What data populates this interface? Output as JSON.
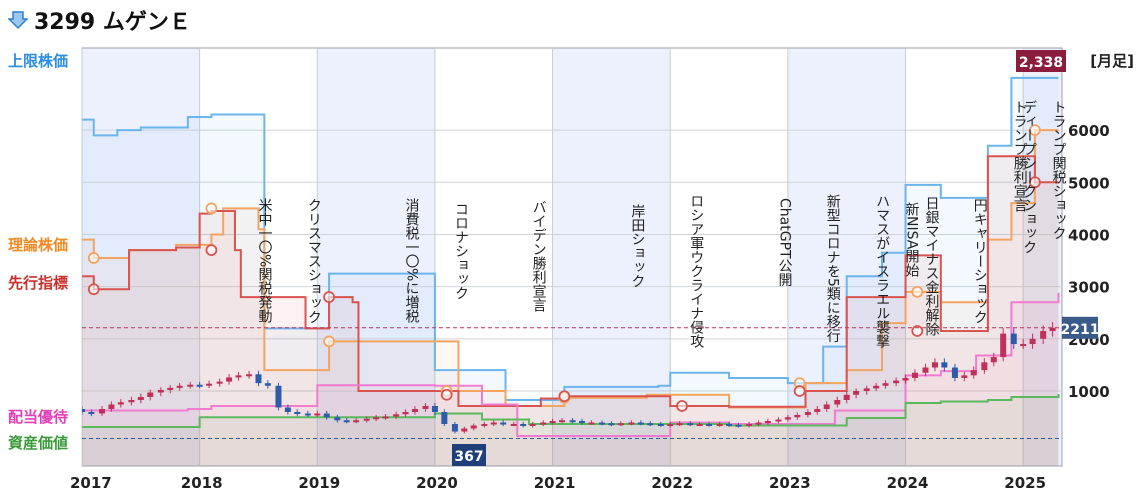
{
  "header": {
    "title": "3299 ムゲンＥ"
  },
  "legend": {
    "upper": "上限株価",
    "theory": "理論株価",
    "leading": "先行指標",
    "dividend": "配当優待",
    "asset": "資産価値",
    "period": "[月足]"
  },
  "colors": {
    "upper": "#6bb4ec",
    "theory": "#f4a460",
    "leading": "#d9534f",
    "dividend": "#f27ad0",
    "asset": "#5cb85c",
    "up_candle": "#c0305a",
    "down_candle": "#2f5ca8",
    "max_badge": "#8b1c3c",
    "min_badge": "#1f3f7a",
    "current_badge": "#3a5a8a"
  },
  "chart_data": {
    "type": "line",
    "x_axis": {
      "ticks": [
        "2017",
        "2018",
        "2019",
        "2020",
        "2021",
        "2022",
        "2023",
        "2024",
        "2025"
      ]
    },
    "y_axis": {
      "ticks": [
        1000,
        2000,
        3000,
        4000,
        5000,
        6000
      ]
    },
    "max_label": "2,338",
    "min_label": "367",
    "current_label": "2211",
    "series": [
      {
        "name": "上限株価",
        "x": [
          2017.0,
          2017.1,
          2017.3,
          2017.5,
          2017.9,
          2018.1,
          2018.5,
          2018.55,
          2018.9,
          2019.0,
          2019.1,
          2019.7,
          2019.8,
          2020.0,
          2020.4,
          2020.6,
          2020.9,
          2021.1,
          2021.7,
          2021.9,
          2022.0,
          2022.5,
          2023.0,
          2023.3,
          2023.5,
          2023.8,
          2024.0,
          2024.3,
          2024.5,
          2024.7,
          2024.9,
          2025.3
        ],
        "y": [
          6200,
          5900,
          6000,
          6050,
          6250,
          6300,
          6300,
          2200,
          2200,
          2200,
          3250,
          3250,
          3250,
          1400,
          1400,
          880,
          880,
          1080,
          1080,
          1100,
          1350,
          1250,
          1150,
          1850,
          3200,
          3650,
          4950,
          4700,
          4700,
          5700,
          7000,
          7000
        ]
      },
      {
        "name": "理論株価",
        "x": [
          2017.0,
          2017.1,
          2017.4,
          2017.8,
          2018.1,
          2018.2,
          2018.5,
          2018.55,
          2019.0,
          2019.1,
          2019.7,
          2019.9,
          2020.2,
          2020.4,
          2020.6,
          2020.9,
          2021.1,
          2021.5,
          2021.8,
          2022.0,
          2022.5,
          2022.9,
          2023.0,
          2023.15,
          2023.5,
          2023.8,
          2024.0,
          2024.3,
          2024.6,
          2024.7,
          2024.9,
          2025.1,
          2025.3
        ],
        "y": [
          3900,
          3550,
          3700,
          3800,
          4000,
          4500,
          4100,
          1400,
          1400,
          1950,
          1950,
          1950,
          1000,
          1000,
          800,
          800,
          910,
          910,
          950,
          950,
          780,
          780,
          780,
          1150,
          1400,
          2300,
          2900,
          2700,
          2700,
          3900,
          4600,
          6000,
          6000
        ]
      },
      {
        "name": "先行指標",
        "x": [
          2017.0,
          2017.1,
          2017.4,
          2017.8,
          2018.0,
          2018.1,
          2018.3,
          2018.35,
          2018.9,
          2019.1,
          2019.3,
          2019.35,
          2019.9,
          2020.2,
          2020.5,
          2020.9,
          2021.1,
          2021.5,
          2022.0,
          2022.5,
          2023.0,
          2023.15,
          2023.5,
          2023.8,
          2024.0,
          2024.3,
          2024.6,
          2024.7,
          2024.9,
          2025.1,
          2025.3
        ],
        "y": [
          3200,
          2950,
          3700,
          3750,
          4400,
          4450,
          3700,
          2800,
          2200,
          2800,
          2700,
          1000,
          1000,
          800,
          800,
          900,
          930,
          930,
          800,
          790,
          790,
          1000,
          2800,
          2800,
          3600,
          2150,
          2150,
          5500,
          5500,
          5000,
          5000
        ]
      },
      {
        "name": "配当優待",
        "x": [
          2017.0,
          2017.9,
          2018.1,
          2019.0,
          2020.0,
          2020.4,
          2020.6,
          2020.7,
          2021.5,
          2021.8,
          2022.0,
          2022.5,
          2023.0,
          2023.4,
          2024.0,
          2024.3,
          2024.6,
          2024.9,
          2025.3
        ],
        "y": [
          740,
          760,
          800,
          1110,
          1100,
          820,
          820,
          400,
          400,
          400,
          580,
          560,
          560,
          740,
          1300,
          1380,
          1680,
          2700,
          2880
        ]
      },
      {
        "name": "資産価値",
        "x": [
          2017.0,
          2017.9,
          2018.0,
          2019.0,
          2020.0,
          2020.4,
          2020.8,
          2021.5,
          2022.0,
          2022.5,
          2023.0,
          2023.5,
          2024.0,
          2024.3,
          2024.5,
          2024.7,
          2024.9,
          2025.3
        ],
        "y": [
          520,
          520,
          650,
          650,
          700,
          620,
          560,
          560,
          560,
          540,
          540,
          640,
          840,
          860,
          860,
          880,
          920,
          960
        ]
      }
    ],
    "candles": [
      {
        "x": 2017.0,
        "o": 760,
        "c": 720
      },
      {
        "x": 2017.08,
        "o": 720,
        "c": 700
      },
      {
        "x": 2017.17,
        "o": 700,
        "c": 760
      },
      {
        "x": 2017.25,
        "o": 760,
        "c": 820
      },
      {
        "x": 2017.33,
        "o": 820,
        "c": 850
      },
      {
        "x": 2017.42,
        "o": 850,
        "c": 880
      },
      {
        "x": 2017.5,
        "o": 880,
        "c": 920
      },
      {
        "x": 2017.58,
        "o": 920,
        "c": 980
      },
      {
        "x": 2017.67,
        "o": 980,
        "c": 1020
      },
      {
        "x": 2017.75,
        "o": 1020,
        "c": 1060
      },
      {
        "x": 2017.83,
        "o": 1060,
        "c": 1100
      },
      {
        "x": 2017.92,
        "o": 1100,
        "c": 1120
      },
      {
        "x": 2018.0,
        "o": 1120,
        "c": 1110
      },
      {
        "x": 2018.08,
        "o": 1110,
        "c": 1140
      },
      {
        "x": 2018.17,
        "o": 1140,
        "c": 1180
      },
      {
        "x": 2018.25,
        "o": 1180,
        "c": 1260
      },
      {
        "x": 2018.33,
        "o": 1260,
        "c": 1300
      },
      {
        "x": 2018.42,
        "o": 1300,
        "c": 1320
      },
      {
        "x": 2018.5,
        "o": 1320,
        "c": 1150
      },
      {
        "x": 2018.58,
        "o": 1150,
        "c": 1100
      },
      {
        "x": 2018.67,
        "o": 1100,
        "c": 780
      },
      {
        "x": 2018.75,
        "o": 780,
        "c": 720
      },
      {
        "x": 2018.83,
        "o": 720,
        "c": 700
      },
      {
        "x": 2018.92,
        "o": 700,
        "c": 690
      },
      {
        "x": 2019.0,
        "o": 690,
        "c": 700
      },
      {
        "x": 2019.08,
        "o": 700,
        "c": 650
      },
      {
        "x": 2019.17,
        "o": 650,
        "c": 610
      },
      {
        "x": 2019.25,
        "o": 610,
        "c": 600
      },
      {
        "x": 2019.33,
        "o": 600,
        "c": 610
      },
      {
        "x": 2019.42,
        "o": 610,
        "c": 630
      },
      {
        "x": 2019.5,
        "o": 630,
        "c": 650
      },
      {
        "x": 2019.58,
        "o": 650,
        "c": 660
      },
      {
        "x": 2019.67,
        "o": 660,
        "c": 690
      },
      {
        "x": 2019.75,
        "o": 690,
        "c": 720
      },
      {
        "x": 2019.83,
        "o": 720,
        "c": 760
      },
      {
        "x": 2019.92,
        "o": 760,
        "c": 800
      },
      {
        "x": 2020.0,
        "o": 800,
        "c": 720
      },
      {
        "x": 2020.08,
        "o": 720,
        "c": 560
      },
      {
        "x": 2020.17,
        "o": 560,
        "c": 460
      },
      {
        "x": 2020.25,
        "o": 460,
        "c": 500
      },
      {
        "x": 2020.33,
        "o": 500,
        "c": 540
      },
      {
        "x": 2020.42,
        "o": 540,
        "c": 560
      },
      {
        "x": 2020.5,
        "o": 560,
        "c": 580
      },
      {
        "x": 2020.58,
        "o": 580,
        "c": 560
      },
      {
        "x": 2020.67,
        "o": 560,
        "c": 560
      },
      {
        "x": 2020.75,
        "o": 560,
        "c": 540
      },
      {
        "x": 2020.83,
        "o": 540,
        "c": 560
      },
      {
        "x": 2020.92,
        "o": 560,
        "c": 580
      },
      {
        "x": 2021.0,
        "o": 580,
        "c": 600
      },
      {
        "x": 2021.08,
        "o": 600,
        "c": 610
      },
      {
        "x": 2021.17,
        "o": 610,
        "c": 600
      },
      {
        "x": 2021.25,
        "o": 600,
        "c": 580
      },
      {
        "x": 2021.33,
        "o": 580,
        "c": 580
      },
      {
        "x": 2021.42,
        "o": 580,
        "c": 570
      },
      {
        "x": 2021.5,
        "o": 570,
        "c": 560
      },
      {
        "x": 2021.58,
        "o": 560,
        "c": 570
      },
      {
        "x": 2021.67,
        "o": 570,
        "c": 580
      },
      {
        "x": 2021.75,
        "o": 580,
        "c": 570
      },
      {
        "x": 2021.83,
        "o": 570,
        "c": 560
      },
      {
        "x": 2021.92,
        "o": 560,
        "c": 550
      },
      {
        "x": 2022.0,
        "o": 550,
        "c": 560
      },
      {
        "x": 2022.08,
        "o": 560,
        "c": 570
      },
      {
        "x": 2022.17,
        "o": 570,
        "c": 560
      },
      {
        "x": 2022.25,
        "o": 560,
        "c": 560
      },
      {
        "x": 2022.33,
        "o": 560,
        "c": 550
      },
      {
        "x": 2022.42,
        "o": 550,
        "c": 560
      },
      {
        "x": 2022.5,
        "o": 560,
        "c": 550
      },
      {
        "x": 2022.58,
        "o": 550,
        "c": 540
      },
      {
        "x": 2022.67,
        "o": 540,
        "c": 560
      },
      {
        "x": 2022.75,
        "o": 560,
        "c": 580
      },
      {
        "x": 2022.83,
        "o": 580,
        "c": 600
      },
      {
        "x": 2022.92,
        "o": 600,
        "c": 620
      },
      {
        "x": 2023.0,
        "o": 620,
        "c": 650
      },
      {
        "x": 2023.08,
        "o": 650,
        "c": 680
      },
      {
        "x": 2023.17,
        "o": 680,
        "c": 720
      },
      {
        "x": 2023.25,
        "o": 720,
        "c": 760
      },
      {
        "x": 2023.33,
        "o": 760,
        "c": 820
      },
      {
        "x": 2023.42,
        "o": 820,
        "c": 880
      },
      {
        "x": 2023.5,
        "o": 880,
        "c": 950
      },
      {
        "x": 2023.58,
        "o": 950,
        "c": 1000
      },
      {
        "x": 2023.67,
        "o": 1000,
        "c": 1050
      },
      {
        "x": 2023.75,
        "o": 1050,
        "c": 1100
      },
      {
        "x": 2023.83,
        "o": 1100,
        "c": 1150
      },
      {
        "x": 2023.92,
        "o": 1150,
        "c": 1200
      },
      {
        "x": 2024.0,
        "o": 1200,
        "c": 1250
      },
      {
        "x": 2024.08,
        "o": 1250,
        "c": 1350
      },
      {
        "x": 2024.17,
        "o": 1350,
        "c": 1450
      },
      {
        "x": 2024.25,
        "o": 1450,
        "c": 1550
      },
      {
        "x": 2024.33,
        "o": 1550,
        "c": 1450
      },
      {
        "x": 2024.42,
        "o": 1450,
        "c": 1250
      },
      {
        "x": 2024.5,
        "o": 1250,
        "c": 1300
      },
      {
        "x": 2024.58,
        "o": 1300,
        "c": 1400
      },
      {
        "x": 2024.67,
        "o": 1400,
        "c": 1550
      },
      {
        "x": 2024.75,
        "o": 1550,
        "c": 1650
      },
      {
        "x": 2024.83,
        "o": 1650,
        "c": 2100
      },
      {
        "x": 2024.92,
        "o": 2100,
        "c": 1900
      },
      {
        "x": 2025.0,
        "o": 1900,
        "c": 1900
      },
      {
        "x": 2025.08,
        "o": 1900,
        "c": 2000
      },
      {
        "x": 2025.17,
        "o": 2000,
        "c": 2150
      },
      {
        "x": 2025.25,
        "o": 2150,
        "c": 2211
      }
    ],
    "markers": [
      {
        "series": "理論株価",
        "x": 2017.1,
        "y": 3550
      },
      {
        "series": "理論株価",
        "x": 2018.1,
        "y": 4500
      },
      {
        "series": "理論株価",
        "x": 2019.1,
        "y": 1950
      },
      {
        "series": "理論株価",
        "x": 2020.1,
        "y": 1000
      },
      {
        "series": "理論株価",
        "x": 2021.1,
        "y": 910
      },
      {
        "series": "理論株価",
        "x": 2023.1,
        "y": 1150
      },
      {
        "series": "理論株価",
        "x": 2024.1,
        "y": 2900
      },
      {
        "series": "理論株価",
        "x": 2025.1,
        "y": 6000
      },
      {
        "series": "先行指標",
        "x": 2017.1,
        "y": 2950
      },
      {
        "series": "先行指標",
        "x": 2018.1,
        "y": 3700
      },
      {
        "series": "先行指標",
        "x": 2019.1,
        "y": 2800
      },
      {
        "series": "先行指標",
        "x": 2020.1,
        "y": 950
      },
      {
        "series": "先行指標",
        "x": 2021.1,
        "y": 930
      },
      {
        "series": "先行指標",
        "x": 2022.1,
        "y": 800
      },
      {
        "series": "先行指標",
        "x": 2023.1,
        "y": 1000
      },
      {
        "series": "先行指標",
        "x": 2024.1,
        "y": 2150
      },
      {
        "series": "先行指標",
        "x": 2025.1,
        "y": 5000
      }
    ],
    "annotations": [
      {
        "x": 2018.5,
        "text": "米中一〇%関税発動"
      },
      {
        "x": 2018.92,
        "text": "クリスマスショック"
      },
      {
        "x": 2019.75,
        "text": "消費税一〇%に増税"
      },
      {
        "x": 2020.17,
        "text": "コロナショック"
      },
      {
        "x": 2020.83,
        "text": "バイデン勝利宣言"
      },
      {
        "x": 2021.67,
        "text": "岸田ショック"
      },
      {
        "x": 2022.17,
        "text": "ロシア軍ウクライナ侵攻"
      },
      {
        "x": 2022.92,
        "text": "ChatGPT公開"
      },
      {
        "x": 2023.33,
        "text": "新型コロナを5類に移行"
      },
      {
        "x": 2023.75,
        "text": "ハマスがイスラエル襲撃"
      },
      {
        "x": 2024.0,
        "text": "新NISA開始"
      },
      {
        "x": 2024.17,
        "text": "日銀マイナス金利解除"
      },
      {
        "x": 2024.58,
        "text": "円キャリーショック"
      },
      {
        "x": 2024.92,
        "text": "トランプ勝利宣言"
      },
      {
        "x": 2025.0,
        "text": "ディープシークショック"
      },
      {
        "x": 2025.25,
        "text": "トランプ関税ショック"
      }
    ]
  }
}
